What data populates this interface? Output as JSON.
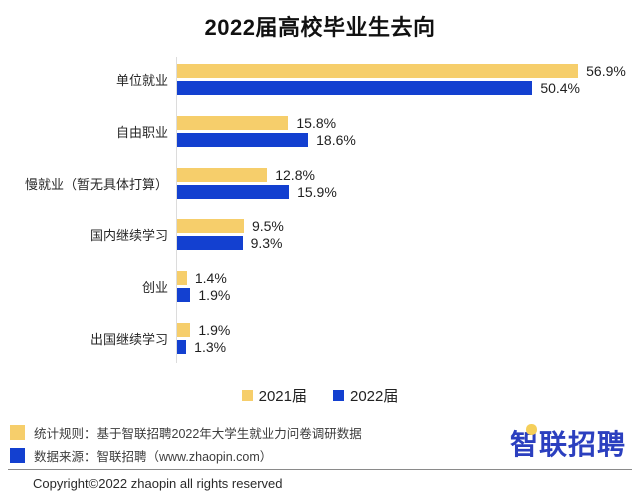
{
  "title": "2022届高校毕业生去向",
  "chart_data": {
    "type": "bar",
    "orientation": "horizontal",
    "title": "2022届高校毕业生去向",
    "categories": [
      "单位就业",
      "自由职业",
      "慢就业（暂无具体打算）",
      "国内继续学习",
      "创业",
      "出国继续学习"
    ],
    "series": [
      {
        "name": "2021届",
        "color": "#F6CE6B",
        "values": [
          56.9,
          15.8,
          12.8,
          9.5,
          1.4,
          1.9
        ]
      },
      {
        "name": "2022届",
        "color": "#1340D0",
        "values": [
          50.4,
          18.6,
          15.9,
          9.3,
          1.9,
          1.3
        ]
      }
    ],
    "value_suffix": "%",
    "xlim": [
      0,
      60
    ],
    "grid": false,
    "data_labels": true,
    "legend_position": "bottom-center"
  },
  "legend": {
    "items": [
      {
        "label": "2021届",
        "color": "#F6CE6B"
      },
      {
        "label": "2022届",
        "color": "#1340D0"
      }
    ]
  },
  "footer": {
    "notes": [
      {
        "text": "统计规则：基于智联招聘2022年大学生就业力问卷调研数据",
        "color": "#F6CE6B"
      },
      {
        "text": "数据来源：智联招聘（www.zhaopin.com）",
        "color": "#1340D0"
      }
    ],
    "logo_text": "智联招聘",
    "copyright": "Copyright©2022 zhaopin all rights reserved"
  },
  "colors": {
    "bar_2021": "#F6CE6B",
    "bar_2022": "#1340D0",
    "axis_line": "#DCDCDC",
    "logo_blue": "#2B3FBF",
    "logo_dot": "#F5CF5A",
    "rule": "#8A8A8A"
  }
}
